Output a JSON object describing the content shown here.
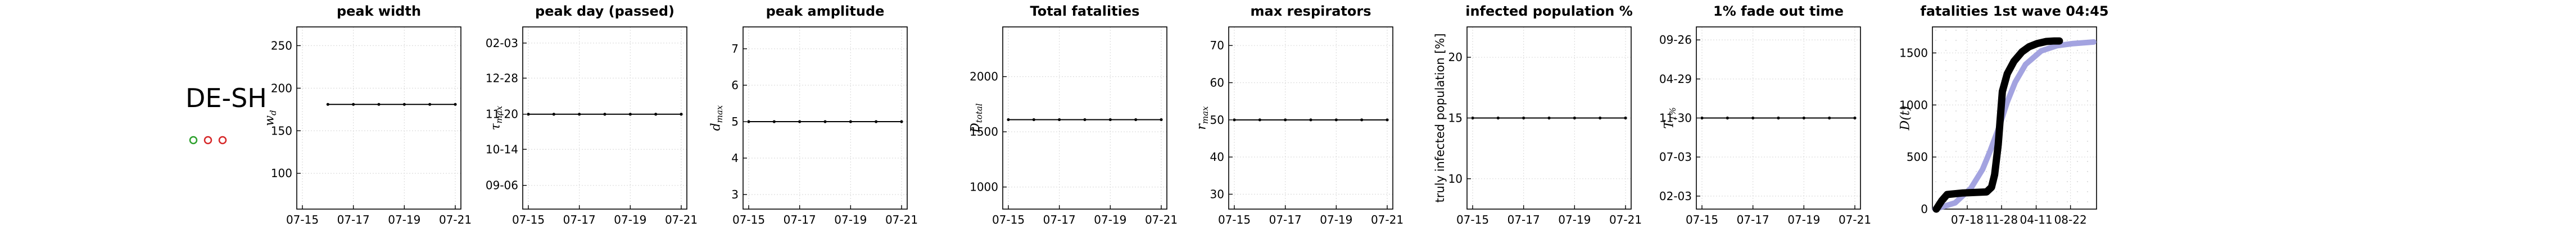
{
  "region": "DE-SH",
  "legend_dots": [
    {
      "color": "#2ca02c"
    },
    {
      "color": "#d62728"
    },
    {
      "color": "#d62728"
    }
  ],
  "chart_data": [
    {
      "type": "line",
      "title": "peak width",
      "ylabel": "w_d",
      "x": [
        "07-15",
        "07-16",
        "07-17",
        "07-18",
        "07-19",
        "07-20",
        "07-21"
      ],
      "xticks": [
        "07-15",
        "07-17",
        "07-19",
        "07-21"
      ],
      "values": [
        null,
        181,
        181,
        181,
        181,
        181,
        181
      ],
      "ylim": [
        58,
        272
      ],
      "yticks": [
        100,
        150,
        200,
        250
      ],
      "ytick_labels": [
        "100",
        "150",
        "200",
        "250"
      ],
      "grid": true
    },
    {
      "type": "line",
      "title": "peak day (passed)",
      "ylabel": "τ_max",
      "x": [
        "07-15",
        "07-16",
        "07-17",
        "07-18",
        "07-19",
        "07-20",
        "07-21"
      ],
      "xticks": [
        "07-15",
        "07-17",
        "07-19",
        "07-21"
      ],
      "values": [
        "2020-11-20",
        "2020-11-20",
        "2020-11-20",
        "2020-11-20",
        "2020-11-20",
        "2020-11-20",
        "2020-11-20"
      ],
      "ylim": [
        "2020-08-12",
        "2021-02-20"
      ],
      "yticks": [
        "2020-09-06",
        "2020-10-14",
        "2020-11-20",
        "2020-12-28",
        "2021-02-03"
      ],
      "ytick_labels": [
        "09-06",
        "10-14",
        "11-20",
        "12-28",
        "02-03"
      ],
      "grid": true
    },
    {
      "type": "line",
      "title": "peak amplitude",
      "ylabel": "d_max",
      "x": [
        "07-15",
        "07-16",
        "07-17",
        "07-18",
        "07-19",
        "07-20",
        "07-21"
      ],
      "xticks": [
        "07-15",
        "07-17",
        "07-19",
        "07-21"
      ],
      "values": [
        5,
        5,
        5,
        5,
        5,
        5,
        5
      ],
      "ylim": [
        2.6,
        7.6
      ],
      "yticks": [
        3,
        4,
        5,
        6,
        7
      ],
      "ytick_labels": [
        "3",
        "4",
        "5",
        "6",
        "7"
      ],
      "grid": true
    },
    {
      "type": "line",
      "title": "Total fatalities",
      "ylabel": "D_total",
      "x": [
        "07-15",
        "07-16",
        "07-17",
        "07-18",
        "07-19",
        "07-20",
        "07-21"
      ],
      "xticks": [
        "07-15",
        "07-17",
        "07-19",
        "07-21"
      ],
      "values": [
        1610,
        1610,
        1610,
        1610,
        1610,
        1610,
        1610
      ],
      "ylim": [
        800,
        2450
      ],
      "yticks": [
        1000,
        1500,
        2000
      ],
      "ytick_labels": [
        "1000",
        "1500",
        "2000"
      ],
      "grid": true
    },
    {
      "type": "line",
      "title": "max respirators",
      "ylabel": "r_max",
      "x": [
        "07-15",
        "07-16",
        "07-17",
        "07-18",
        "07-19",
        "07-20",
        "07-21"
      ],
      "xticks": [
        "07-15",
        "07-17",
        "07-19",
        "07-21"
      ],
      "values": [
        50,
        50,
        50,
        50,
        50,
        50,
        50
      ],
      "ylim": [
        26,
        75
      ],
      "yticks": [
        30,
        40,
        50,
        60,
        70
      ],
      "ytick_labels": [
        "30",
        "40",
        "50",
        "60",
        "70"
      ],
      "grid": true
    },
    {
      "type": "line",
      "title": "infected population %",
      "ylabel": "truly infected population [%]",
      "x": [
        "07-15",
        "07-16",
        "07-17",
        "07-18",
        "07-19",
        "07-20",
        "07-21"
      ],
      "xticks": [
        "07-15",
        "07-17",
        "07-19",
        "07-21"
      ],
      "values": [
        15,
        15,
        15,
        15,
        15,
        15,
        15
      ],
      "ylim": [
        7.5,
        22.5
      ],
      "yticks": [
        10,
        15,
        20
      ],
      "ytick_labels": [
        "10",
        "15",
        "20"
      ],
      "grid": true
    },
    {
      "type": "line",
      "title": "1% fade out time",
      "ylabel": "T_1%",
      "x": [
        "07-15",
        "07-16",
        "07-17",
        "07-18",
        "07-19",
        "07-20",
        "07-21"
      ],
      "xticks": [
        "07-15",
        "07-17",
        "07-19",
        "07-21"
      ],
      "values": [
        "2021-11-30",
        "2021-11-30",
        "2021-11-30",
        "2021-11-30",
        "2021-11-30",
        "2021-11-30",
        "2021-11-30"
      ],
      "ylim": [
        "2020-12-15",
        "2022-11-15"
      ],
      "yticks": [
        "2021-02-03",
        "2021-07-03",
        "2021-11-30",
        "2022-04-29",
        "2022-09-26"
      ],
      "ytick_labels": [
        "02-03",
        "07-03",
        "11-30",
        "04-29",
        "09-26"
      ],
      "grid": true
    },
    {
      "type": "line",
      "title": "fatalities 1st wave 04:45",
      "ylabel": "D(t)",
      "xticks": [
        "2020-07-18",
        "2020-11-28",
        "2021-04-11",
        "2021-08-22"
      ],
      "xtick_labels": [
        "07-18",
        "11-28",
        "04-11",
        "08-22"
      ],
      "xlim": [
        "2020-03-05",
        "2021-12-01"
      ],
      "ylim": [
        0,
        1750
      ],
      "yticks": [
        0,
        500,
        1000,
        1500
      ],
      "ytick_labels": [
        "0",
        "500",
        "1000",
        "1500"
      ],
      "grid": true,
      "series": [
        {
          "color": "#9999dd",
          "x": [
            "2020-03-15",
            "2020-06-01",
            "2020-08-01",
            "2020-09-15",
            "2020-10-15",
            "2020-11-20",
            "2020-12-20",
            "2021-01-20",
            "2021-03-01",
            "2021-05-01",
            "2021-07-01",
            "2021-09-01",
            "2021-11-20"
          ],
          "y": [
            0,
            60,
            200,
            380,
            560,
            800,
            1030,
            1220,
            1390,
            1520,
            1570,
            1590,
            1605
          ]
        },
        {
          "color": "#000000",
          "x": [
            "2020-03-20",
            "2020-04-10",
            "2020-05-01",
            "2020-07-01",
            "2020-10-01",
            "2020-10-20",
            "2020-11-01",
            "2020-11-15",
            "2020-12-01",
            "2020-12-20",
            "2021-01-15",
            "2021-02-15",
            "2021-03-15",
            "2021-04-15",
            "2021-05-20",
            "2021-06-20",
            "2021-07-10"
          ],
          "y": [
            0,
            80,
            140,
            155,
            165,
            210,
            330,
            620,
            1130,
            1300,
            1420,
            1510,
            1560,
            1590,
            1610,
            1615,
            1615
          ]
        }
      ]
    }
  ]
}
